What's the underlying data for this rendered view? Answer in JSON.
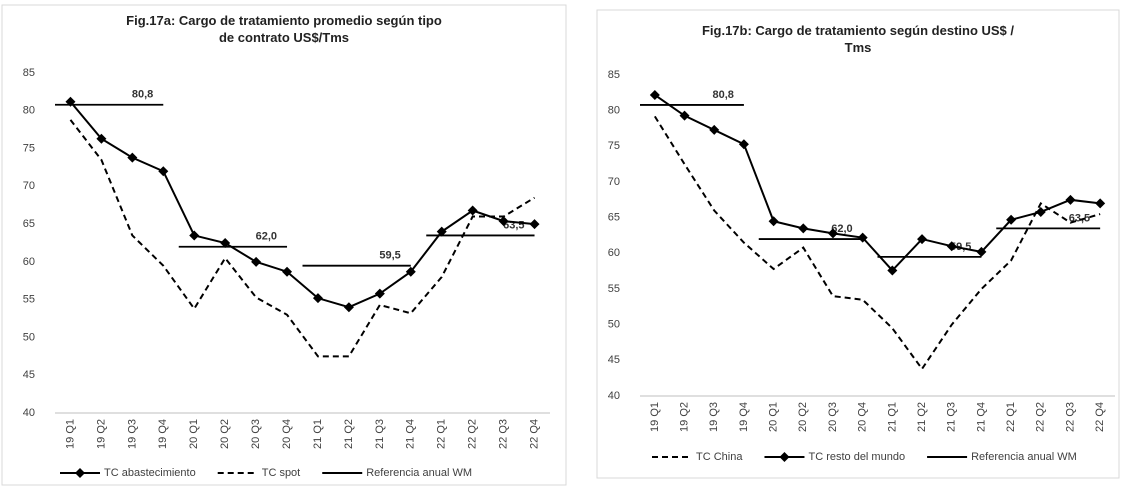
{
  "chart_data": [
    {
      "type": "line",
      "title": "Fig.17a: Cargo de tratamiento promedio según tipo de contrato US$/Tms",
      "categories": [
        "19 Q1",
        "19 Q2",
        "19 Q3",
        "19 Q4",
        "20 Q1",
        "20 Q2",
        "20 Q3",
        "20 Q4",
        "21 Q1",
        "21 Q2",
        "21 Q3",
        "21 Q4",
        "22 Q1",
        "22 Q2",
        "22 Q3",
        "22 Q4"
      ],
      "series": [
        {
          "name": "TC abastecimiento",
          "color": "#000000",
          "marker": "diamond",
          "dash": false,
          "values": [
            81.2,
            76.3,
            73.8,
            72.0,
            63.5,
            62.5,
            60.0,
            58.7,
            55.2,
            54.0,
            55.8,
            58.7,
            64.0,
            66.8,
            65.4,
            65.0
          ]
        },
        {
          "name": "TC spot",
          "color": "#000000",
          "marker": "none",
          "dash": true,
          "values": [
            78.8,
            73.5,
            63.5,
            59.5,
            53.8,
            60.5,
            55.3,
            53.0,
            47.5,
            47.5,
            54.3,
            53.2,
            58.0,
            66.0,
            66.0,
            68.5
          ]
        }
      ],
      "reference": {
        "name": "Referencia anual WM",
        "color": "#000000",
        "values": [
          80.8,
          62.0,
          59.5,
          63.5
        ],
        "value_labels": [
          "80,8",
          "62,0",
          "59,5",
          "63,5"
        ]
      },
      "ylim": [
        40,
        85
      ],
      "yticks": [
        40,
        45,
        50,
        55,
        60,
        65,
        70,
        75,
        80,
        85
      ],
      "grid": false
    },
    {
      "type": "line",
      "title": "Fig.17b: Cargo de tratamiento según destino US$ / Tms",
      "categories": [
        "19 Q1",
        "19 Q2",
        "19 Q3",
        "19 Q4",
        "20 Q1",
        "20 Q2",
        "20 Q3",
        "20 Q4",
        "21 Q1",
        "21 Q2",
        "21 Q3",
        "21 Q4",
        "22 Q1",
        "22 Q2",
        "22 Q3",
        "22 Q4"
      ],
      "series": [
        {
          "name": "TC China",
          "color": "#000000",
          "marker": "none",
          "dash": true,
          "values": [
            79.2,
            72.5,
            66.0,
            61.5,
            57.8,
            60.8,
            54.0,
            53.5,
            49.5,
            43.8,
            50.0,
            55.0,
            59.0,
            67.0,
            64.3,
            65.5
          ]
        },
        {
          "name": "TC resto del mundo",
          "color": "#000000",
          "marker": "diamond",
          "dash": false,
          "values": [
            82.2,
            79.3,
            77.3,
            75.3,
            64.5,
            63.5,
            62.8,
            62.2,
            57.6,
            62.0,
            61.0,
            60.2,
            64.7,
            65.8,
            67.5,
            67.0
          ]
        }
      ],
      "reference": {
        "name": "Referencia anual WM",
        "color": "#000000",
        "values": [
          80.8,
          62.0,
          59.5,
          63.5
        ],
        "value_labels": [
          "80,8",
          "62,0",
          "59,5",
          "63,5"
        ]
      },
      "ylim": [
        40,
        85
      ],
      "yticks": [
        40,
        45,
        50,
        55,
        60,
        65,
        70,
        75,
        80,
        85
      ],
      "grid": false
    }
  ]
}
